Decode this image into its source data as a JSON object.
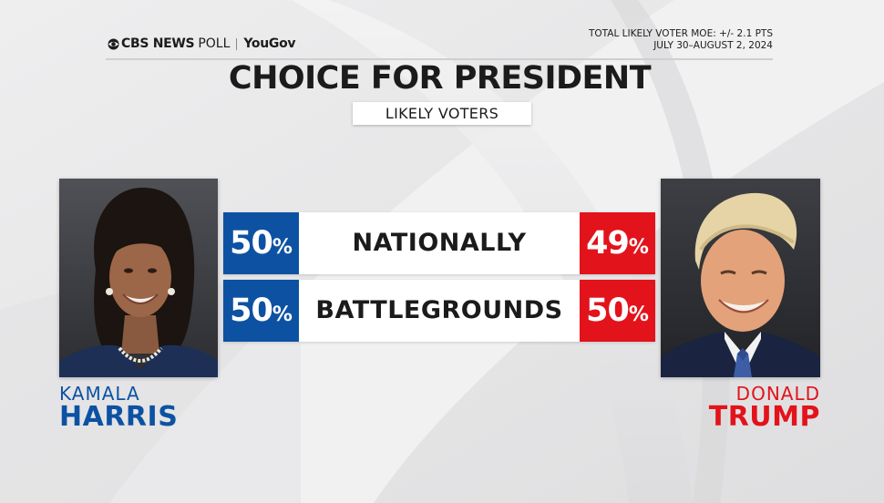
{
  "header": {
    "brand_cbs": "CBS NEWS",
    "brand_poll": "POLL",
    "brand_yougov": "YouGov",
    "moe_line": "TOTAL LIKELY VOTER MOE: +/- 2.1 PTS",
    "date_line": "JULY 30–AUGUST 2, 2024"
  },
  "chart_data": {
    "type": "table",
    "title": "CHOICE FOR PRESIDENT",
    "subtitle": "LIKELY VOTERS",
    "candidates": [
      {
        "first": "KAMALA",
        "last": "HARRIS",
        "color": "#0d52a2"
      },
      {
        "first": "DONALD",
        "last": "TRUMP",
        "color": "#e3131b"
      }
    ],
    "categories": [
      "NATIONALLY",
      "BATTLEGROUNDS"
    ],
    "series": [
      {
        "name": "HARRIS",
        "values": [
          50,
          50
        ]
      },
      {
        "name": "TRUMP",
        "values": [
          49,
          50
        ]
      }
    ],
    "unit": "%"
  },
  "colors": {
    "harris_blue": "#0d52a2",
    "trump_red": "#e3131b",
    "background": "#e9e9ea"
  },
  "icons": {
    "brand": "cbs-eye-icon",
    "left_photo": "kamala-harris-portrait",
    "right_photo": "donald-trump-portrait"
  }
}
